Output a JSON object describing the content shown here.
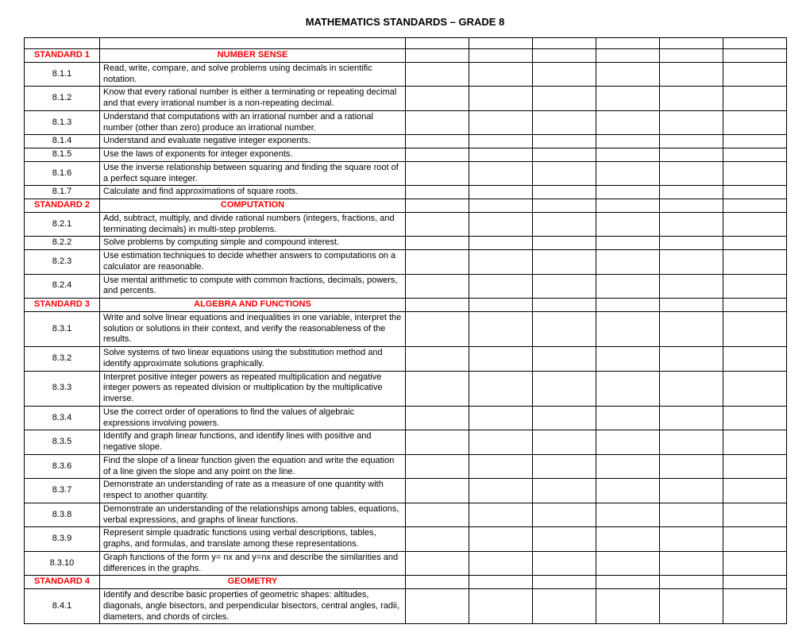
{
  "title": "MATHEMATICS STANDARDS – GRADE 8",
  "colors": {
    "header_text": "#ff0000",
    "body_text": "#000000",
    "border": "#000000",
    "background": "#ffffff"
  },
  "columns": {
    "code_width": 95,
    "desc_width": 385,
    "check_count": 6,
    "check_width": 80
  },
  "rows": [
    {
      "type": "blank"
    },
    {
      "type": "header",
      "code": "STANDARD 1",
      "desc": "NUMBER SENSE"
    },
    {
      "type": "item",
      "code": "8.1.1",
      "desc": "Read, write, compare, and solve problems using decimals in scientific notation."
    },
    {
      "type": "item",
      "code": "8.1.2",
      "desc": "Know that every rational number is either a terminating or repeating decimal and that every irrational number is a non-repeating decimal."
    },
    {
      "type": "item",
      "code": "8.1.3",
      "desc": "Understand that computations with an irrational number and a rational number (other than zero) produce an irrational number."
    },
    {
      "type": "item",
      "code": "8.1.4",
      "desc": "Understand and evaluate negative integer exponents."
    },
    {
      "type": "item",
      "code": "8.1.5",
      "desc": "Use the laws of exponents for integer exponents."
    },
    {
      "type": "item",
      "code": "8.1.6",
      "desc": "Use the inverse relationship between squaring and finding the square root of a perfect square integer."
    },
    {
      "type": "item",
      "code": "8.1.7",
      "desc": "Calculate and find approximations of square roots."
    },
    {
      "type": "header",
      "code": "STANDARD 2",
      "desc": "COMPUTATION"
    },
    {
      "type": "item",
      "code": "8.2.1",
      "desc": "Add, subtract, multiply, and divide rational numbers (integers, fractions, and terminating decimals) in multi-step problems."
    },
    {
      "type": "item",
      "code": "8.2.2",
      "desc": "Solve problems by computing simple and compound interest."
    },
    {
      "type": "item",
      "code": "8.2.3",
      "desc": "Use estimation techniques to decide whether answers to computations on a calculator are reasonable."
    },
    {
      "type": "item",
      "code": "8.2.4",
      "desc": "Use mental arithmetic to compute with common fractions, decimals, powers, and percents."
    },
    {
      "type": "header",
      "code": "STANDARD 3",
      "desc": "ALGEBRA AND FUNCTIONS"
    },
    {
      "type": "item",
      "code": "8.3.1",
      "desc": "Write and solve linear equations and inequalities in one variable, interpret the solution or solutions in their context, and verify the reasonableness of the results."
    },
    {
      "type": "item",
      "code": "8.3.2",
      "desc": "Solve systems of two linear equations using the substitution method and identify approximate solutions graphically."
    },
    {
      "type": "item",
      "code": "8.3.3",
      "desc": "Interpret positive integer powers as repeated multiplication and negative integer powers as repeated division or multiplication by the multiplicative inverse."
    },
    {
      "type": "item",
      "code": "8.3.4",
      "desc": "Use the correct order of operations to find the values of algebraic expressions involving powers."
    },
    {
      "type": "item",
      "code": "8.3.5",
      "desc": "Identify and graph linear functions, and identify lines with positive and negative slope."
    },
    {
      "type": "item",
      "code": "8.3.6",
      "desc": "Find the slope of a linear function given the equation and write the equation of a line given the slope and any point on the line."
    },
    {
      "type": "item",
      "code": "8.3.7",
      "desc": "Demonstrate an understanding of rate as a measure of one quantity with respect to another quantity."
    },
    {
      "type": "item",
      "code": "8.3.8",
      "desc": "Demonstrate an understanding of the relationships among tables, equations, verbal expressions, and graphs of linear functions."
    },
    {
      "type": "item",
      "code": "8.3.9",
      "desc": "Represent simple quadratic functions using verbal descriptions, tables, graphs, and formulas, and translate among these representations."
    },
    {
      "type": "item",
      "code": "8.3.10",
      "desc": "Graph functions of the form y= nx   and y=nx  and describe the similarities and differences  in the graphs."
    },
    {
      "type": "header",
      "code": "STANDARD 4",
      "desc": "GEOMETRY"
    },
    {
      "type": "item",
      "code": "8.4.1",
      "desc": "Identify and describe basic properties of geometric  shapes: altitudes, diagonals, angle bisectors, and perpendicular bisectors, central angles, radii, diameters, and chords of circles."
    }
  ]
}
